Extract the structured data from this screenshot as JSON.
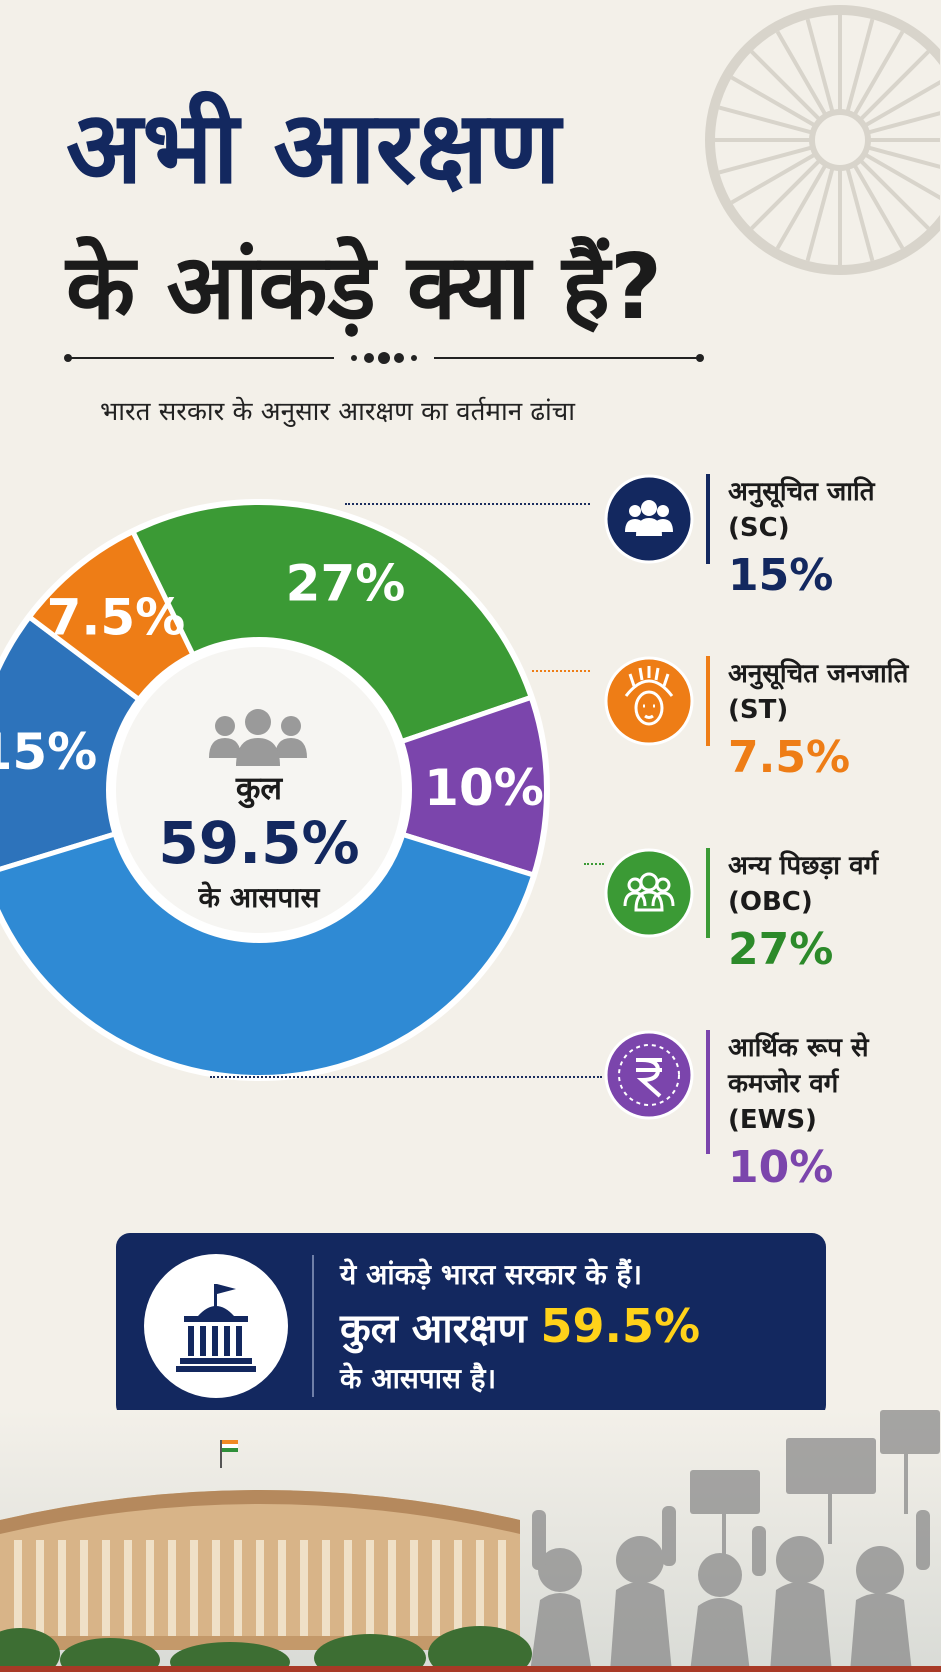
{
  "header": {
    "title_line1": "अभी आरक्षण",
    "title_line2": "के आंकड़े क्या हैं?",
    "subtitle": "भारत सरकार के अनुसार आरक्षण का वर्तमान ढांचा"
  },
  "center": {
    "label": "कुल",
    "value": "59.5%",
    "sub": "के आसपास"
  },
  "legend": [
    {
      "name": "अनुसूचित जाति\n(SC)",
      "value": "15%",
      "icon": "group-icon"
    },
    {
      "name": "अनुसूचित जनजाति\n(ST)",
      "value": "7.5%",
      "icon": "tribal-headdress-icon"
    },
    {
      "name": "अन्य पिछड़ा वर्ग\n(OBC)",
      "value": "27%",
      "icon": "group-icon"
    },
    {
      "name": "आर्थिक रूप से\nकमजोर  वर्ग\n(EWS)",
      "value": "10%",
      "icon": "rupee-icon"
    }
  ],
  "banner": {
    "line1": "ये आंकड़े भारत सरकार के हैं।",
    "line2_prefix": "कुल आरक्षण ",
    "line2_value": "59.5%",
    "line3": "के आसपास है।",
    "icon": "government-building-icon"
  },
  "colors": {
    "navy": "#13285f",
    "sc": "#2d73bb",
    "st": "#ee7d16",
    "obc": "#3b9a35",
    "ews": "#7b45ac",
    "unreserved": "#2f8ad4",
    "highlight": "#ffd21a"
  },
  "chart_data": {
    "type": "pie",
    "categories": [
      "SC",
      "ST",
      "OBC",
      "EWS",
      ""
    ],
    "values": [
      15,
      7.5,
      27,
      10,
      40.5
    ],
    "labels": [
      "15%",
      "7.5%",
      "27%",
      "10%",
      ""
    ],
    "colors": [
      "#2d73bb",
      "#ee7d16",
      "#3b9a35",
      "#7b45ac",
      "#2f8ad4"
    ],
    "center_label": "कुल",
    "center_value": "59.5%",
    "center_sub": "के आसपास"
  }
}
